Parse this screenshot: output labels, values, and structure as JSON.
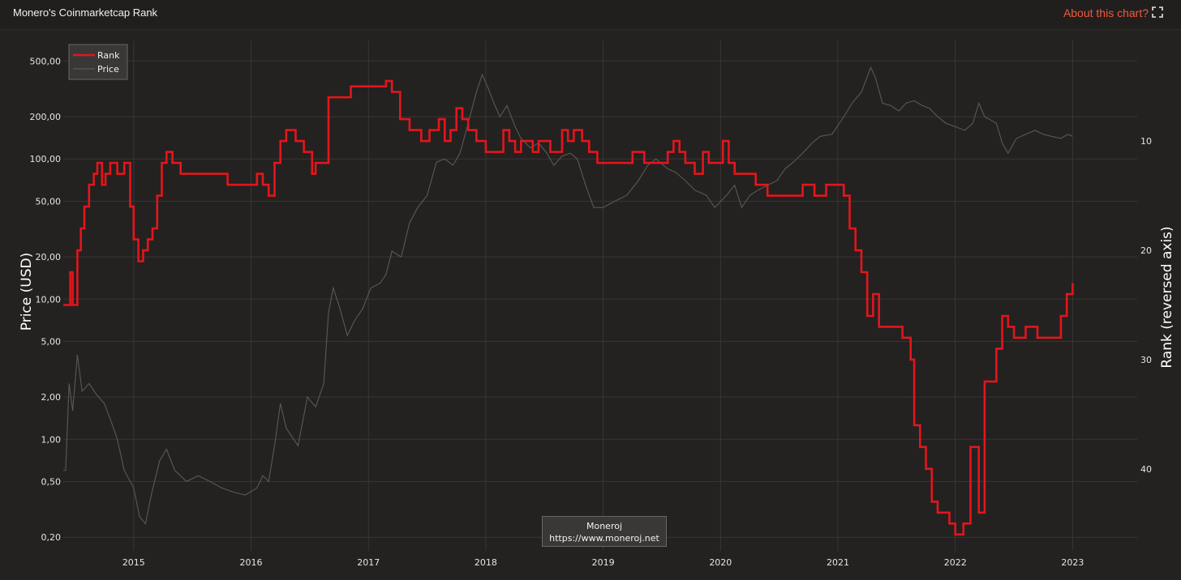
{
  "header": {
    "title": "Monero's Coinmarketcap Rank",
    "about_label": "About this chart?",
    "expand_icon": "expand-icon"
  },
  "watermark": {
    "line1": "Moneroj",
    "line2": "https://www.moneroj.net"
  },
  "colors": {
    "rank": "#e3161b",
    "price": "#5a5858",
    "grid": "#3a3636",
    "accent": "#f05a3e"
  },
  "chart_data": {
    "type": "line",
    "xlabel": "",
    "ylabel": "Price (USD)",
    "y2label": "Rank (reversed axis)",
    "x_ticks": [
      "2015",
      "2016",
      "2017",
      "2018",
      "2019",
      "2020",
      "2021",
      "2022",
      "2023"
    ],
    "x_range": [
      2014.4,
      2023.55
    ],
    "y_scale": "log",
    "y_range": [
      0.16,
      700
    ],
    "y_ticks": [
      0.2,
      0.5,
      1,
      2,
      5,
      10,
      20,
      50,
      100,
      200,
      500
    ],
    "y_tick_labels": [
      "0,20",
      "0,50",
      "1,00",
      "2,00",
      "5,00",
      "10,00",
      "20,00",
      "50,00",
      "100,00",
      "200,00",
      "500,00"
    ],
    "y2_reversed": true,
    "y2_range": [
      0.8,
      47.5
    ],
    "y2_ticks": [
      10,
      20,
      30,
      40
    ],
    "legend": {
      "position": "top-left",
      "entries": [
        "Rank",
        "Price"
      ]
    },
    "grid": true,
    "series": [
      {
        "name": "Rank",
        "axis": "right",
        "step": true,
        "points": [
          [
            2014.4,
            25
          ],
          [
            2014.46,
            22
          ],
          [
            2014.48,
            25
          ],
          [
            2014.52,
            20
          ],
          [
            2014.55,
            18
          ],
          [
            2014.58,
            16
          ],
          [
            2014.62,
            14
          ],
          [
            2014.66,
            13
          ],
          [
            2014.69,
            12
          ],
          [
            2014.73,
            14
          ],
          [
            2014.76,
            13
          ],
          [
            2014.8,
            12
          ],
          [
            2014.86,
            13
          ],
          [
            2014.92,
            12
          ],
          [
            2014.97,
            16
          ],
          [
            2015.0,
            19
          ],
          [
            2015.04,
            21
          ],
          [
            2015.08,
            20
          ],
          [
            2015.12,
            19
          ],
          [
            2015.16,
            18
          ],
          [
            2015.2,
            15
          ],
          [
            2015.24,
            12
          ],
          [
            2015.28,
            11
          ],
          [
            2015.33,
            12
          ],
          [
            2015.4,
            13
          ],
          [
            2015.6,
            13
          ],
          [
            2015.8,
            14
          ],
          [
            2015.95,
            14
          ],
          [
            2016.05,
            13
          ],
          [
            2016.1,
            14
          ],
          [
            2016.15,
            15
          ],
          [
            2016.2,
            12
          ],
          [
            2016.25,
            10
          ],
          [
            2016.3,
            9
          ],
          [
            2016.38,
            10
          ],
          [
            2016.45,
            11
          ],
          [
            2016.52,
            13
          ],
          [
            2016.55,
            12
          ],
          [
            2016.62,
            12
          ],
          [
            2016.66,
            6
          ],
          [
            2016.75,
            6
          ],
          [
            2016.85,
            5
          ],
          [
            2017.05,
            5
          ],
          [
            2017.15,
            4.5
          ],
          [
            2017.2,
            5.5
          ],
          [
            2017.27,
            8
          ],
          [
            2017.35,
            9
          ],
          [
            2017.45,
            10
          ],
          [
            2017.52,
            9
          ],
          [
            2017.6,
            8
          ],
          [
            2017.65,
            10
          ],
          [
            2017.7,
            9
          ],
          [
            2017.75,
            7
          ],
          [
            2017.8,
            8
          ],
          [
            2017.85,
            9
          ],
          [
            2017.92,
            10
          ],
          [
            2018.0,
            11
          ],
          [
            2018.1,
            11
          ],
          [
            2018.15,
            9
          ],
          [
            2018.2,
            10
          ],
          [
            2018.25,
            11
          ],
          [
            2018.3,
            10
          ],
          [
            2018.4,
            11
          ],
          [
            2018.45,
            10
          ],
          [
            2018.55,
            11
          ],
          [
            2018.62,
            11
          ],
          [
            2018.65,
            9
          ],
          [
            2018.7,
            10
          ],
          [
            2018.75,
            9
          ],
          [
            2018.82,
            10
          ],
          [
            2018.88,
            11
          ],
          [
            2018.95,
            12
          ],
          [
            2019.05,
            12
          ],
          [
            2019.15,
            12
          ],
          [
            2019.25,
            11
          ],
          [
            2019.35,
            12
          ],
          [
            2019.45,
            12
          ],
          [
            2019.55,
            11
          ],
          [
            2019.6,
            10
          ],
          [
            2019.65,
            11
          ],
          [
            2019.7,
            12
          ],
          [
            2019.78,
            13
          ],
          [
            2019.85,
            11
          ],
          [
            2019.9,
            12
          ],
          [
            2019.95,
            12
          ],
          [
            2020.02,
            10
          ],
          [
            2020.07,
            12
          ],
          [
            2020.12,
            13
          ],
          [
            2020.2,
            13
          ],
          [
            2020.3,
            14
          ],
          [
            2020.4,
            15
          ],
          [
            2020.55,
            15
          ],
          [
            2020.7,
            14
          ],
          [
            2020.8,
            15
          ],
          [
            2020.9,
            14
          ],
          [
            2021.0,
            14
          ],
          [
            2021.05,
            15
          ],
          [
            2021.1,
            18
          ],
          [
            2021.15,
            20
          ],
          [
            2021.2,
            22
          ],
          [
            2021.25,
            26
          ],
          [
            2021.3,
            24
          ],
          [
            2021.35,
            27
          ],
          [
            2021.45,
            27
          ],
          [
            2021.55,
            28
          ],
          [
            2021.62,
            30
          ],
          [
            2021.65,
            36
          ],
          [
            2021.7,
            38
          ],
          [
            2021.75,
            40
          ],
          [
            2021.8,
            43
          ],
          [
            2021.85,
            44
          ],
          [
            2021.9,
            44
          ],
          [
            2021.95,
            45
          ],
          [
            2022.0,
            46
          ],
          [
            2022.07,
            45
          ],
          [
            2022.13,
            38
          ],
          [
            2022.2,
            44
          ],
          [
            2022.25,
            32
          ],
          [
            2022.35,
            29
          ],
          [
            2022.4,
            26
          ],
          [
            2022.45,
            27
          ],
          [
            2022.5,
            28
          ],
          [
            2022.6,
            27
          ],
          [
            2022.7,
            28
          ],
          [
            2022.8,
            28
          ],
          [
            2022.9,
            26
          ],
          [
            2022.95,
            24
          ],
          [
            2023.0,
            23
          ]
        ]
      },
      {
        "name": "Price",
        "axis": "left",
        "points": [
          [
            2014.4,
            0.6
          ],
          [
            2014.42,
            0.6
          ],
          [
            2014.45,
            2.5
          ],
          [
            2014.48,
            1.6
          ],
          [
            2014.52,
            4.0
          ],
          [
            2014.56,
            2.2
          ],
          [
            2014.62,
            2.5
          ],
          [
            2014.68,
            2.1
          ],
          [
            2014.75,
            1.8
          ],
          [
            2014.8,
            1.4
          ],
          [
            2014.86,
            1.0
          ],
          [
            2014.92,
            0.6
          ],
          [
            2015.0,
            0.45
          ],
          [
            2015.05,
            0.28
          ],
          [
            2015.1,
            0.25
          ],
          [
            2015.15,
            0.4
          ],
          [
            2015.22,
            0.7
          ],
          [
            2015.28,
            0.85
          ],
          [
            2015.35,
            0.6
          ],
          [
            2015.45,
            0.5
          ],
          [
            2015.55,
            0.55
          ],
          [
            2015.65,
            0.5
          ],
          [
            2015.75,
            0.45
          ],
          [
            2015.85,
            0.42
          ],
          [
            2015.95,
            0.4
          ],
          [
            2016.05,
            0.45
          ],
          [
            2016.1,
            0.55
          ],
          [
            2016.15,
            0.5
          ],
          [
            2016.2,
            0.9
          ],
          [
            2016.25,
            1.8
          ],
          [
            2016.3,
            1.2
          ],
          [
            2016.4,
            0.9
          ],
          [
            2016.48,
            2.0
          ],
          [
            2016.55,
            1.7
          ],
          [
            2016.62,
            2.5
          ],
          [
            2016.66,
            8.0
          ],
          [
            2016.7,
            12.0
          ],
          [
            2016.75,
            9.0
          ],
          [
            2016.82,
            5.5
          ],
          [
            2016.88,
            7.0
          ],
          [
            2016.95,
            8.5
          ],
          [
            2017.02,
            12.0
          ],
          [
            2017.1,
            13.0
          ],
          [
            2017.15,
            15.0
          ],
          [
            2017.2,
            22.0
          ],
          [
            2017.28,
            20.0
          ],
          [
            2017.35,
            35.0
          ],
          [
            2017.42,
            45.0
          ],
          [
            2017.5,
            55.0
          ],
          [
            2017.58,
            95.0
          ],
          [
            2017.65,
            100.0
          ],
          [
            2017.72,
            90.0
          ],
          [
            2017.78,
            110.0
          ],
          [
            2017.85,
            180.0
          ],
          [
            2017.92,
            300.0
          ],
          [
            2017.97,
            400.0
          ],
          [
            2018.02,
            320.0
          ],
          [
            2018.07,
            250.0
          ],
          [
            2018.12,
            200.0
          ],
          [
            2018.18,
            240.0
          ],
          [
            2018.25,
            170.0
          ],
          [
            2018.3,
            140.0
          ],
          [
            2018.38,
            120.0
          ],
          [
            2018.45,
            130.0
          ],
          [
            2018.52,
            110.0
          ],
          [
            2018.58,
            90.0
          ],
          [
            2018.65,
            105.0
          ],
          [
            2018.72,
            110.0
          ],
          [
            2018.78,
            100.0
          ],
          [
            2018.85,
            65.0
          ],
          [
            2018.92,
            45.0
          ],
          [
            2019.0,
            45.0
          ],
          [
            2019.1,
            50.0
          ],
          [
            2019.2,
            55.0
          ],
          [
            2019.3,
            70.0
          ],
          [
            2019.38,
            90.0
          ],
          [
            2019.45,
            100.0
          ],
          [
            2019.55,
            85.0
          ],
          [
            2019.62,
            80.0
          ],
          [
            2019.7,
            70.0
          ],
          [
            2019.78,
            60.0
          ],
          [
            2019.88,
            55.0
          ],
          [
            2019.95,
            45.0
          ],
          [
            2020.05,
            55.0
          ],
          [
            2020.12,
            65.0
          ],
          [
            2020.18,
            45.0
          ],
          [
            2020.25,
            55.0
          ],
          [
            2020.32,
            60.0
          ],
          [
            2020.4,
            65.0
          ],
          [
            2020.48,
            70.0
          ],
          [
            2020.55,
            85.0
          ],
          [
            2020.62,
            95.0
          ],
          [
            2020.7,
            110.0
          ],
          [
            2020.78,
            130.0
          ],
          [
            2020.85,
            145.0
          ],
          [
            2020.95,
            150.0
          ],
          [
            2021.05,
            200.0
          ],
          [
            2021.12,
            250.0
          ],
          [
            2021.2,
            300.0
          ],
          [
            2021.28,
            450.0
          ],
          [
            2021.32,
            380.0
          ],
          [
            2021.38,
            250.0
          ],
          [
            2021.45,
            240.0
          ],
          [
            2021.52,
            220.0
          ],
          [
            2021.58,
            250.0
          ],
          [
            2021.65,
            260.0
          ],
          [
            2021.72,
            240.0
          ],
          [
            2021.78,
            230.0
          ],
          [
            2021.85,
            200.0
          ],
          [
            2021.92,
            180.0
          ],
          [
            2022.0,
            170.0
          ],
          [
            2022.08,
            160.0
          ],
          [
            2022.15,
            180.0
          ],
          [
            2022.2,
            250.0
          ],
          [
            2022.25,
            200.0
          ],
          [
            2022.3,
            190.0
          ],
          [
            2022.35,
            180.0
          ],
          [
            2022.4,
            130.0
          ],
          [
            2022.45,
            110.0
          ],
          [
            2022.52,
            140.0
          ],
          [
            2022.6,
            150.0
          ],
          [
            2022.68,
            160.0
          ],
          [
            2022.75,
            150.0
          ],
          [
            2022.82,
            145.0
          ],
          [
            2022.9,
            140.0
          ],
          [
            2022.96,
            150.0
          ],
          [
            2023.0,
            145.0
          ]
        ]
      }
    ]
  }
}
